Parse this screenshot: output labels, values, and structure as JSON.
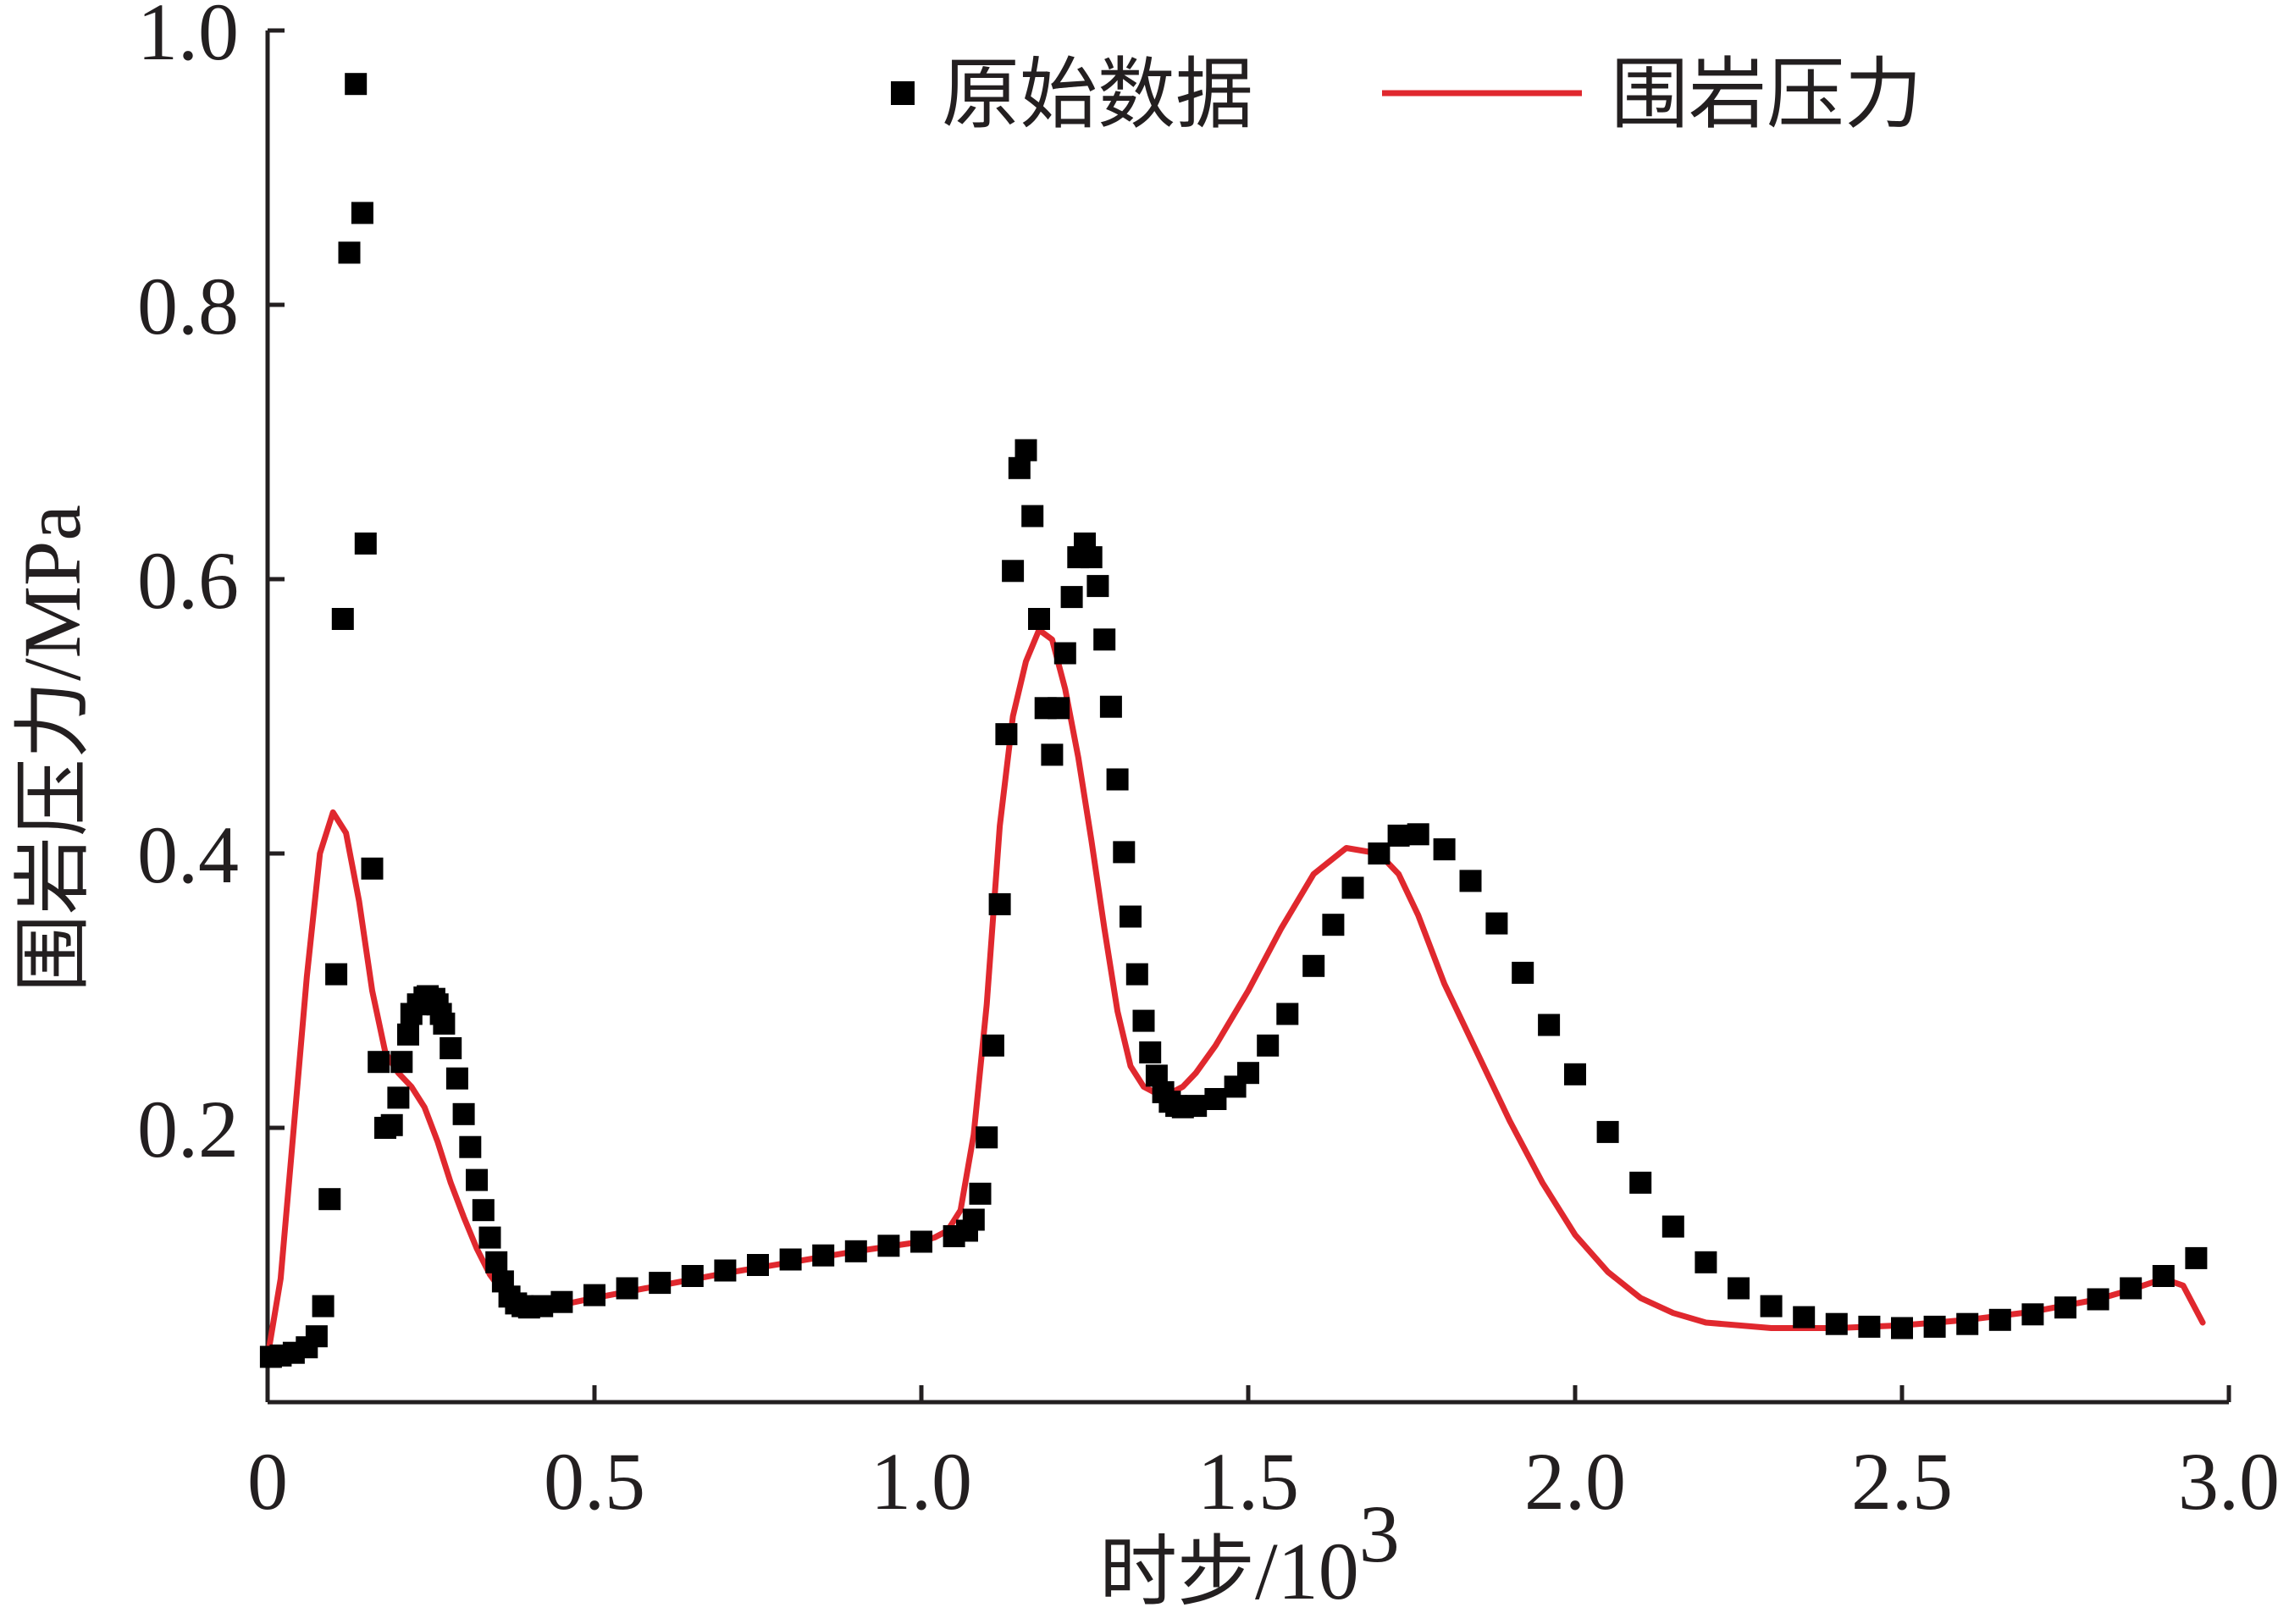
{
  "chart_data": {
    "type": "scatter",
    "xlabel_cn": "时步",
    "xlabel_unit": "/10",
    "xlabel_sup": "3",
    "ylabel_cn": "围岩压力",
    "ylabel_unit": "/MPa",
    "xlim": [
      0,
      3.0
    ],
    "ylim": [
      0,
      1.0
    ],
    "x_ticks": [
      0,
      0.5,
      1.0,
      1.5,
      2.0,
      2.5,
      3.0
    ],
    "x_tick_labels": [
      "0",
      "0.5",
      "1.0",
      "1.5",
      "2.0",
      "2.5",
      "3.0"
    ],
    "y_ticks": [
      0.2,
      0.4,
      0.6,
      0.8,
      1.0
    ],
    "y_tick_labels": [
      "0.2",
      "0.4",
      "0.6",
      "0.8",
      "1.0"
    ],
    "legend_position": "top-right",
    "colors": {
      "points": "#000000",
      "fit": "#e0282e",
      "axis": "#231f20"
    },
    "series": [
      {
        "name": "原始数据",
        "kind": "scatter",
        "x": [
          0.005,
          0.02,
          0.04,
          0.06,
          0.075,
          0.085,
          0.095,
          0.105,
          0.115,
          0.125,
          0.135,
          0.145,
          0.15,
          0.16,
          0.17,
          0.18,
          0.19,
          0.2,
          0.205,
          0.215,
          0.22,
          0.23,
          0.24,
          0.245,
          0.255,
          0.26,
          0.265,
          0.27,
          0.28,
          0.29,
          0.3,
          0.31,
          0.32,
          0.33,
          0.34,
          0.35,
          0.36,
          0.37,
          0.38,
          0.39,
          0.4,
          0.42,
          0.45,
          0.5,
          0.55,
          0.6,
          0.65,
          0.7,
          0.75,
          0.8,
          0.85,
          0.9,
          0.95,
          1.0,
          1.05,
          1.07,
          1.08,
          1.09,
          1.1,
          1.11,
          1.12,
          1.13,
          1.14,
          1.15,
          1.16,
          1.17,
          1.18,
          1.19,
          1.2,
          1.21,
          1.22,
          1.23,
          1.24,
          1.25,
          1.26,
          1.27,
          1.28,
          1.29,
          1.3,
          1.31,
          1.32,
          1.33,
          1.34,
          1.35,
          1.36,
          1.37,
          1.38,
          1.39,
          1.4,
          1.42,
          1.45,
          1.48,
          1.5,
          1.53,
          1.56,
          1.6,
          1.63,
          1.66,
          1.7,
          1.73,
          1.76,
          1.8,
          1.84,
          1.88,
          1.92,
          1.96,
          2.0,
          2.05,
          2.1,
          2.15,
          2.2,
          2.25,
          2.3,
          2.35,
          2.4,
          2.45,
          2.5,
          2.55,
          2.6,
          2.65,
          2.7,
          2.75,
          2.8,
          2.85,
          2.9,
          2.95
        ],
        "y": [
          0.033,
          0.034,
          0.036,
          0.04,
          0.048,
          0.07,
          0.148,
          0.312,
          0.571,
          0.838,
          0.961,
          0.867,
          0.626,
          0.389,
          0.248,
          0.2,
          0.202,
          0.222,
          0.248,
          0.268,
          0.283,
          0.29,
          0.295,
          0.296,
          0.294,
          0.29,
          0.283,
          0.276,
          0.258,
          0.236,
          0.21,
          0.186,
          0.162,
          0.14,
          0.12,
          0.102,
          0.088,
          0.077,
          0.072,
          0.07,
          0.069,
          0.07,
          0.073,
          0.078,
          0.083,
          0.087,
          0.092,
          0.096,
          0.1,
          0.104,
          0.107,
          0.11,
          0.114,
          0.117,
          0.121,
          0.125,
          0.133,
          0.152,
          0.193,
          0.26,
          0.363,
          0.487,
          0.606,
          0.681,
          0.694,
          0.646,
          0.571,
          0.506,
          0.472,
          0.506,
          0.546,
          0.587,
          0.616,
          0.626,
          0.616,
          0.595,
          0.556,
          0.507,
          0.454,
          0.401,
          0.354,
          0.312,
          0.278,
          0.255,
          0.238,
          0.226,
          0.219,
          0.216,
          0.215,
          0.216,
          0.221,
          0.23,
          0.24,
          0.26,
          0.283,
          0.318,
          0.348,
          0.375,
          0.4,
          0.413,
          0.414,
          0.403,
          0.38,
          0.349,
          0.313,
          0.275,
          0.239,
          0.197,
          0.16,
          0.128,
          0.102,
          0.083,
          0.07,
          0.062,
          0.057,
          0.055,
          0.054,
          0.055,
          0.057,
          0.06,
          0.064,
          0.069,
          0.075,
          0.083,
          0.092,
          0.105
        ]
      },
      {
        "name": "围岩压力",
        "kind": "line",
        "x": [
          0.0,
          0.02,
          0.04,
          0.06,
          0.08,
          0.1,
          0.12,
          0.14,
          0.16,
          0.18,
          0.2,
          0.22,
          0.24,
          0.26,
          0.28,
          0.3,
          0.32,
          0.34,
          0.36,
          0.38,
          0.4,
          0.42,
          0.45,
          0.5,
          0.6,
          0.7,
          0.8,
          0.9,
          1.0,
          1.02,
          1.04,
          1.06,
          1.08,
          1.1,
          1.12,
          1.14,
          1.16,
          1.18,
          1.2,
          1.22,
          1.24,
          1.26,
          1.28,
          1.3,
          1.32,
          1.34,
          1.36,
          1.38,
          1.4,
          1.42,
          1.45,
          1.5,
          1.55,
          1.6,
          1.65,
          1.7,
          1.73,
          1.76,
          1.8,
          1.85,
          1.9,
          1.95,
          2.0,
          2.05,
          2.1,
          2.15,
          2.2,
          2.3,
          2.4,
          2.5,
          2.6,
          2.7,
          2.8,
          2.85,
          2.9,
          2.93,
          2.96
        ],
        "y": [
          0.033,
          0.09,
          0.2,
          0.31,
          0.4,
          0.43,
          0.415,
          0.365,
          0.3,
          0.255,
          0.24,
          0.23,
          0.215,
          0.19,
          0.16,
          0.135,
          0.112,
          0.093,
          0.08,
          0.072,
          0.069,
          0.068,
          0.071,
          0.076,
          0.085,
          0.094,
          0.102,
          0.11,
          0.117,
          0.12,
          0.125,
          0.14,
          0.195,
          0.29,
          0.42,
          0.5,
          0.54,
          0.563,
          0.556,
          0.52,
          0.47,
          0.41,
          0.345,
          0.285,
          0.245,
          0.23,
          0.225,
          0.225,
          0.23,
          0.24,
          0.26,
          0.3,
          0.345,
          0.385,
          0.404,
          0.4,
          0.385,
          0.355,
          0.305,
          0.255,
          0.205,
          0.16,
          0.122,
          0.095,
          0.076,
          0.065,
          0.058,
          0.054,
          0.054,
          0.056,
          0.06,
          0.066,
          0.075,
          0.082,
          0.09,
          0.085,
          0.058
        ]
      }
    ]
  }
}
